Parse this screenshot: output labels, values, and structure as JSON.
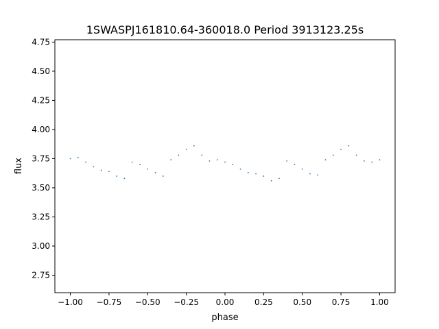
{
  "chart_data": {
    "type": "scatter",
    "title": "1SWASPJ161810.64-360018.0 Period 3913123.25s",
    "xlabel": "phase",
    "ylabel": "flux",
    "xlim": [
      -1.1,
      1.1
    ],
    "ylim": [
      2.6,
      4.77
    ],
    "x_ticks": [
      -1.0,
      -0.75,
      -0.5,
      -0.25,
      0.0,
      0.25,
      0.5,
      0.75,
      1.0
    ],
    "x_tick_labels": [
      "−1.00",
      "−0.75",
      "−0.50",
      "−0.25",
      "0.00",
      "0.25",
      "0.50",
      "0.75",
      "1.00"
    ],
    "y_ticks": [
      2.75,
      3.0,
      3.25,
      3.5,
      3.75,
      4.0,
      4.25,
      4.5,
      4.75
    ],
    "y_tick_labels": [
      "2.75",
      "3.00",
      "3.25",
      "3.50",
      "3.75",
      "4.00",
      "4.25",
      "4.50",
      "4.75"
    ],
    "grid": false,
    "marker_color": "#1f77b4",
    "series": [
      {
        "x": [
          -1.0,
          -0.95,
          -0.9,
          -0.85,
          -0.8,
          -0.75,
          -0.7,
          -0.65,
          -0.6,
          -0.55,
          -0.5,
          -0.45,
          -0.4,
          -0.35,
          -0.3,
          -0.25,
          -0.2,
          -0.15,
          -0.1,
          -0.05,
          0.0,
          0.05,
          0.1,
          0.15,
          0.2,
          0.25,
          0.3,
          0.35,
          0.4,
          0.45,
          0.5,
          0.55,
          0.6,
          0.65,
          0.7,
          0.75,
          0.8,
          0.85,
          0.9,
          0.95,
          1.0
        ],
        "y": [
          3.75,
          3.76,
          3.72,
          3.68,
          3.65,
          3.64,
          3.6,
          3.58,
          3.72,
          3.7,
          3.66,
          3.63,
          3.6,
          3.74,
          3.78,
          3.83,
          3.86,
          3.78,
          3.73,
          3.74,
          3.72,
          3.7,
          3.66,
          3.63,
          3.62,
          3.6,
          3.56,
          3.58,
          3.73,
          3.7,
          3.66,
          3.62,
          3.61,
          3.74,
          3.78,
          3.83,
          3.86,
          3.78,
          3.73,
          3.72,
          3.74
        ]
      }
    ]
  }
}
